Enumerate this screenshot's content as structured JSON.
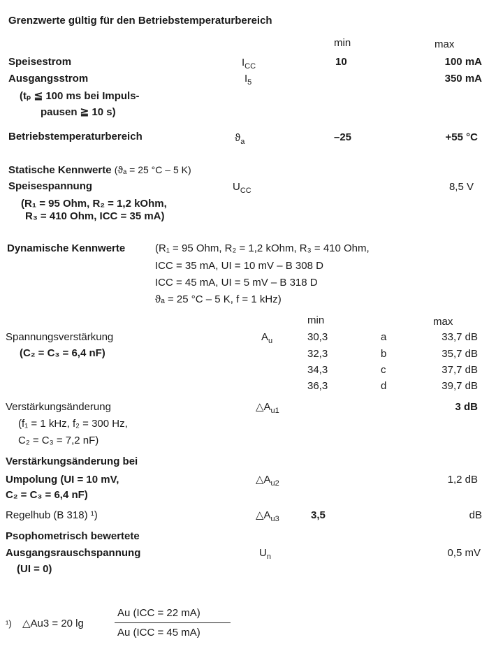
{
  "title": "Grenzwerte gültig für den Betriebstemperaturbereich",
  "limits": {
    "min_header": "min",
    "max_header": "max",
    "rows": [
      {
        "label": "Speisestrom",
        "sym": "I",
        "sub": "CC",
        "min": "10",
        "max": "100 mA"
      },
      {
        "label": "Ausgangsstrom",
        "sym": "I",
        "sub": "5",
        "min": "",
        "max": "350 mA",
        "note1": "(tₚ ≦ 100 ms bei Impuls-",
        "note2": "pausen ≧ 10 s)"
      },
      {
        "label": "Betriebstemperaturbereich",
        "sym": "ϑ",
        "sub": "a",
        "min": "–25",
        "max": "+55 °C"
      }
    ]
  },
  "static": {
    "heading": "Statische Kennwerte",
    "condition": "(ϑₐ = 25 °C – 5 K)",
    "label": "Speisespannung",
    "sym": "U",
    "sub": "CC",
    "max": "8,5 V",
    "note1": "(R₁ = 95 Ohm, R₂ = 1,2 kOhm,",
    "note2": "R₃ = 410 Ohm, ICC = 35 mA)"
  },
  "dynamic": {
    "heading": "Dynamische Kennwerte",
    "conditions": [
      "(R₁ = 95 Ohm, R₂ = 1,2 kOhm, R₃ = 410 Ohm,",
      "ICC = 35 mA, UI = 10 mV – B 308 D",
      "ICC = 45 mA, UI =  5 mV – B 318 D",
      "ϑₐ = 25 °C – 5 K, f = 1 kHz)"
    ],
    "min_header": "min",
    "max_header": "max",
    "gain": {
      "label": "Spannungsverstärkung",
      "note": "(C₂ = C₃ = 6,4 nF)",
      "sym": "A",
      "sub": "u",
      "groups": [
        {
          "min": "30,3",
          "group": "a",
          "max": "33,7 dB"
        },
        {
          "min": "32,3",
          "group": "b",
          "max": "35,7 dB"
        },
        {
          "min": "34,3",
          "group": "c",
          "max": "37,7 dB"
        },
        {
          "min": "36,3",
          "group": "d",
          "max": "39,7 dB"
        }
      ]
    },
    "change1": {
      "label": "Verstärkungsänderung",
      "note1": "(f₁ = 1 kHz, f₂ = 300 Hz,",
      "note2": "C₂ = C₃ = 7,2 nF)",
      "sym": "△A",
      "sub": "u1",
      "max": "3 dB"
    },
    "change2": {
      "label1": "Verstärkungsänderung bei",
      "label2": "Umpolung (UI = 10 mV,",
      "label3": "C₂ = C₃ = 6,4 nF)",
      "sym": "△A",
      "sub": "u2",
      "max": "1,2 dB"
    },
    "regel": {
      "label": "Regelhub (B 318) ¹)",
      "sym": "△A",
      "sub": "u3",
      "min": "3,5",
      "max": "dB"
    },
    "noise": {
      "label1": "Psophometrisch bewertete",
      "label2": "Ausgangsrauschspannung",
      "note": "(UI = 0)",
      "sym": "U",
      "sub": "n",
      "max": "0,5 mV"
    }
  },
  "footnote": {
    "marker": "¹)",
    "lhs": "△Au3 = 20 lg",
    "numerator": "Au (ICC = 22 mA)",
    "denominator": "Au (ICC = 45 mA)"
  }
}
